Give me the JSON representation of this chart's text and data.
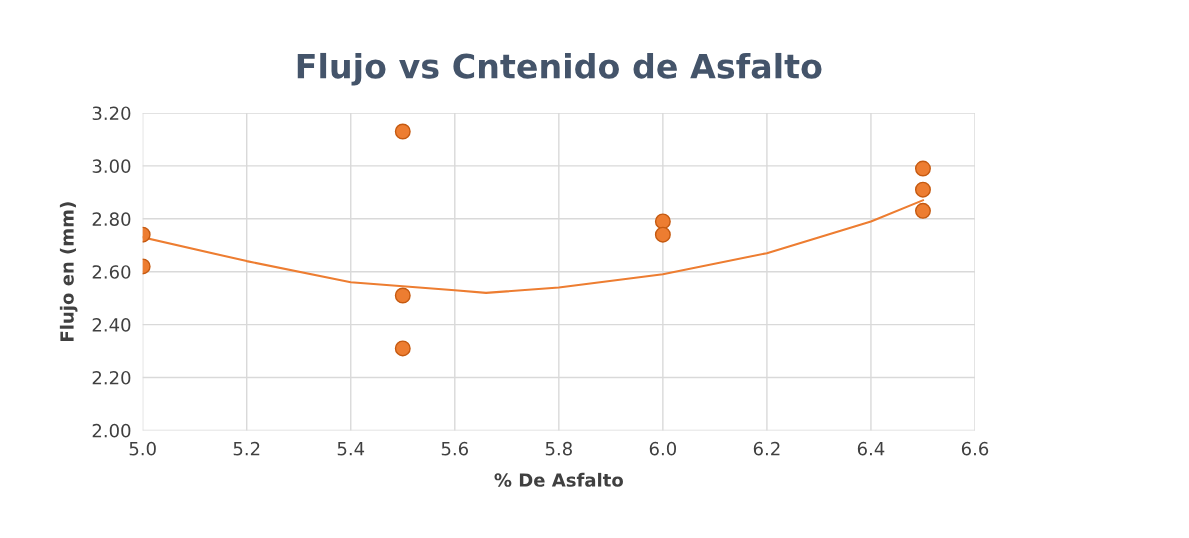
{
  "chart_data": {
    "type": "scatter",
    "title": "Flujo vs Cntenido de Asfalto",
    "xlabel": "% De Asfalto",
    "ylabel": "Flujo en (mm)",
    "xlim": [
      5.0,
      6.6
    ],
    "xticks": [
      {
        "value": 5.0,
        "label": "5.0"
      },
      {
        "value": 5.2,
        "label": "5.2"
      },
      {
        "value": 5.4,
        "label": "5.4"
      },
      {
        "value": 5.6,
        "label": "5.6"
      },
      {
        "value": 5.8,
        "label": "5.8"
      },
      {
        "value": 6.0,
        "label": "6.0"
      },
      {
        "value": 6.2,
        "label": "6.2"
      },
      {
        "value": 6.4,
        "label": "6.4"
      },
      {
        "value": 6.6,
        "label": "6.6"
      }
    ],
    "ylim": [
      2.0,
      3.2
    ],
    "yticks": [
      {
        "value": 2.0,
        "label": "2.00"
      },
      {
        "value": 2.2,
        "label": "2.20"
      },
      {
        "value": 2.4,
        "label": "2.40"
      },
      {
        "value": 2.6,
        "label": "2.60"
      },
      {
        "value": 2.8,
        "label": "2.80"
      },
      {
        "value": 3.0,
        "label": "3.00"
      },
      {
        "value": 3.2,
        "label": "3.20"
      }
    ],
    "grid": true,
    "series": [
      {
        "marker": "circle",
        "color": "#ed7d31",
        "x": [
          5.0,
          5.0,
          5.5,
          5.5,
          5.5,
          6.0,
          6.0,
          6.5,
          6.5,
          6.5
        ],
        "values": [
          2.74,
          2.62,
          3.13,
          2.51,
          2.31,
          2.79,
          2.74,
          2.99,
          2.91,
          2.83
        ]
      },
      {
        "type": "line",
        "color": "#ed7d31",
        "x": [
          5.0,
          5.2,
          5.4,
          5.6,
          5.66,
          5.8,
          6.0,
          6.2,
          6.4,
          6.5
        ],
        "values": [
          2.73,
          2.64,
          2.56,
          2.53,
          2.52,
          2.54,
          2.59,
          2.67,
          2.79,
          2.87
        ]
      }
    ]
  }
}
